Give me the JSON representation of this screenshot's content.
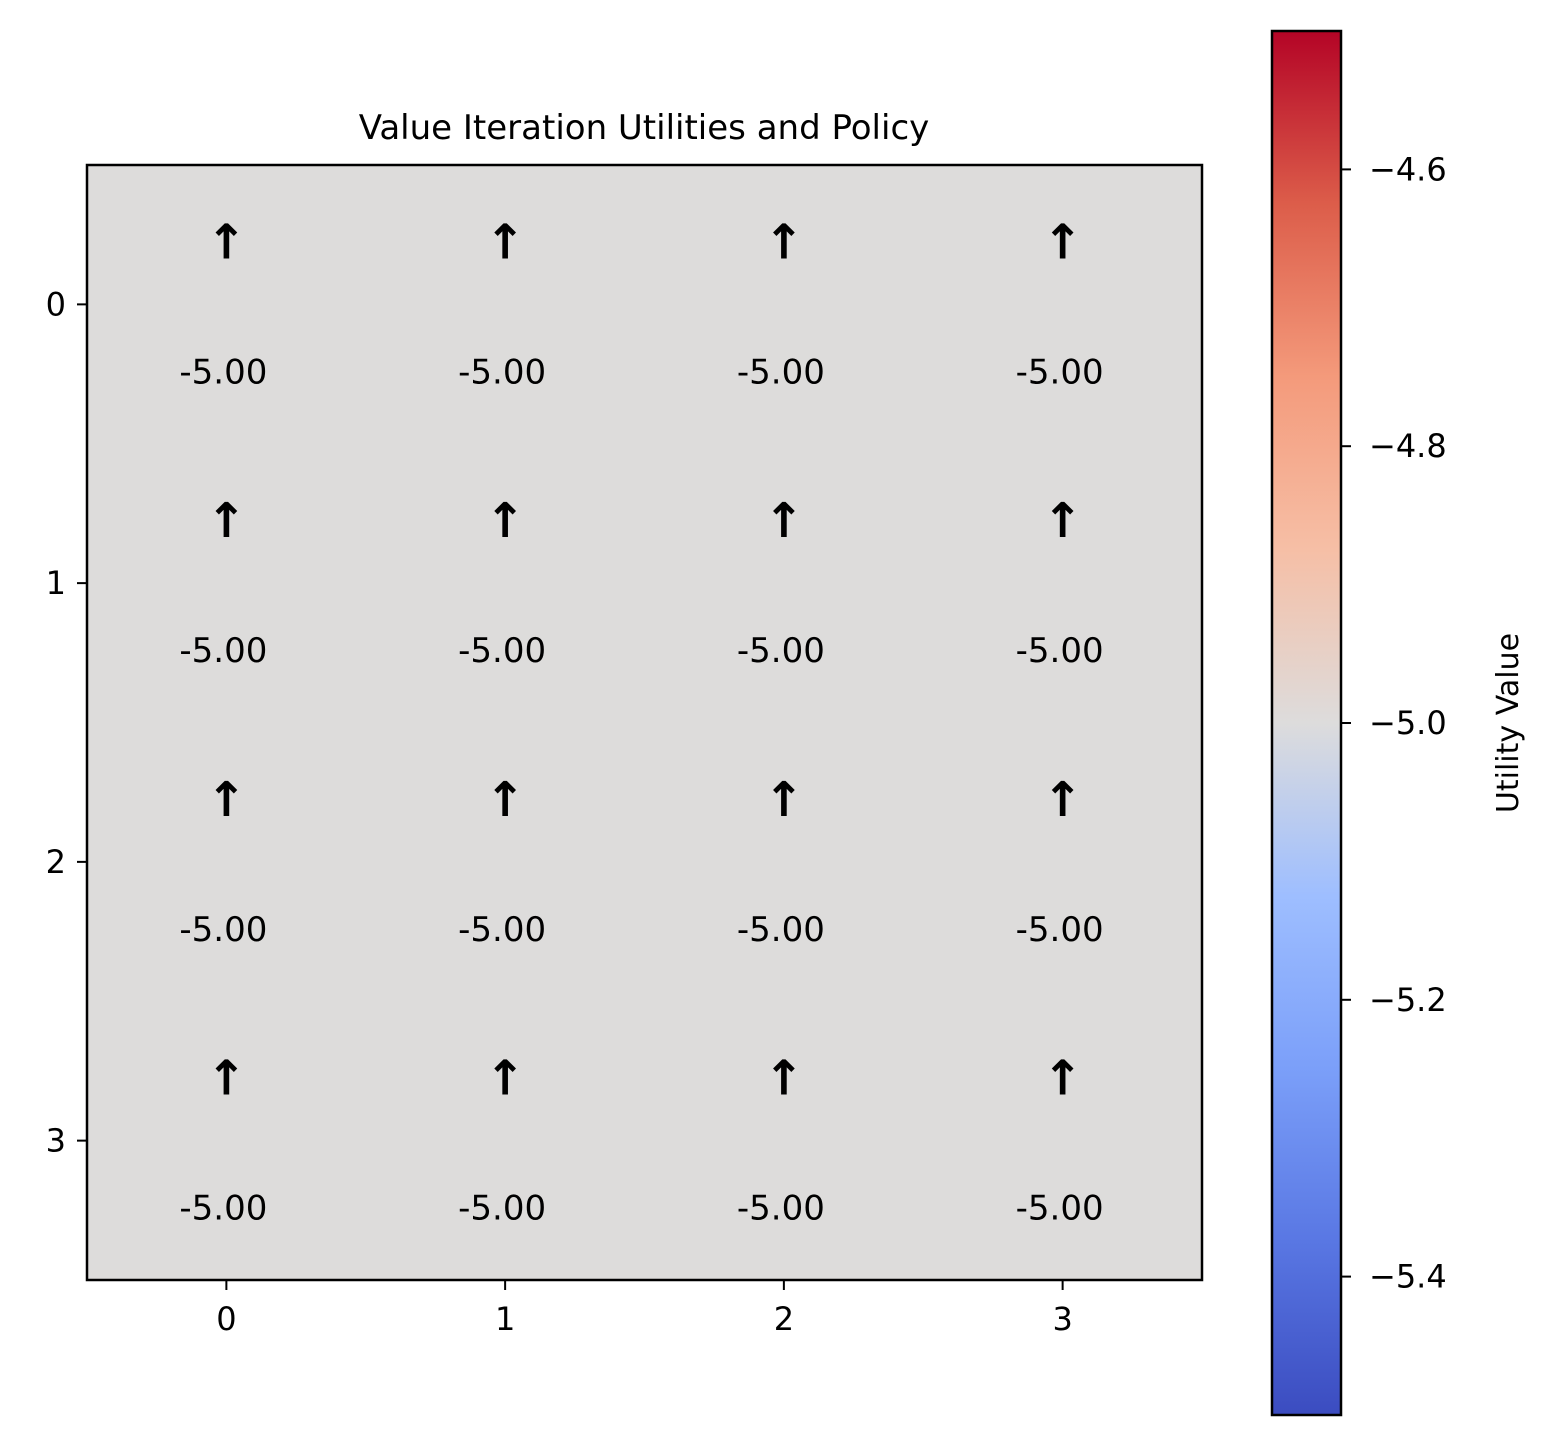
{
  "chart_data": {
    "type": "heatmap",
    "title": "Value Iteration Utilities and Policy",
    "xlabel": "",
    "ylabel": "",
    "x_ticks": [
      "0",
      "1",
      "2",
      "3"
    ],
    "y_ticks": [
      "0",
      "1",
      "2",
      "3"
    ],
    "values": [
      [
        -5.0,
        -5.0,
        -5.0,
        -5.0
      ],
      [
        -5.0,
        -5.0,
        -5.0,
        -5.0
      ],
      [
        -5.0,
        -5.0,
        -5.0,
        -5.0
      ],
      [
        -5.0,
        -5.0,
        -5.0,
        -5.0
      ]
    ],
    "cell_labels": [
      [
        "-5.00",
        "-5.00",
        "-5.00",
        "-5.00"
      ],
      [
        "-5.00",
        "-5.00",
        "-5.00",
        "-5.00"
      ],
      [
        "-5.00",
        "-5.00",
        "-5.00",
        "-5.00"
      ],
      [
        "-5.00",
        "-5.00",
        "-5.00",
        "-5.00"
      ]
    ],
    "policy": [
      [
        "↑",
        "↑",
        "↑",
        "↑"
      ],
      [
        "↑",
        "↑",
        "↑",
        "↑"
      ],
      [
        "↑",
        "↑",
        "↑",
        "↑"
      ],
      [
        "↑",
        "↑",
        "↑",
        "↑"
      ]
    ],
    "colormap": "coolwarm",
    "cell_color": "#dddcdb",
    "colorbar": {
      "label": "Utility Value",
      "range": [
        -5.5,
        -4.5
      ],
      "ticks": [
        -4.6,
        -4.8,
        -5.0,
        -5.2,
        -5.4
      ],
      "tick_labels": [
        "−4.6",
        "−4.8",
        "−5.0",
        "−5.2",
        "−5.4"
      ]
    },
    "grid": false
  }
}
